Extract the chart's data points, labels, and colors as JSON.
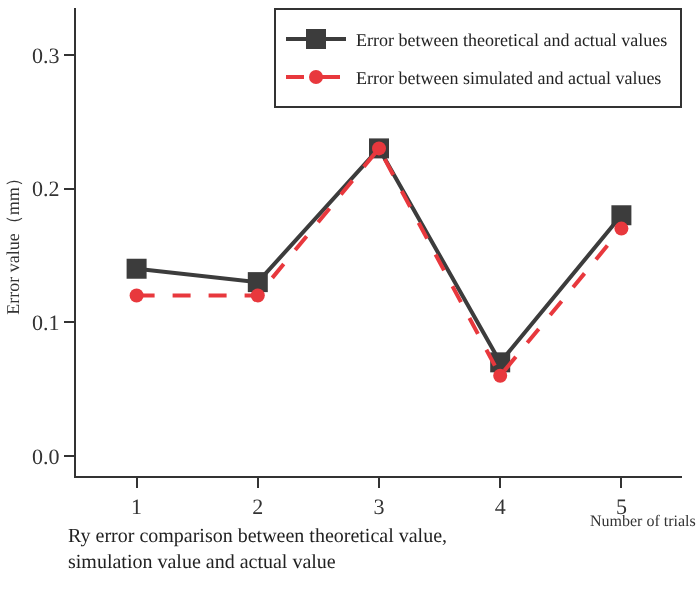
{
  "chart_data": {
    "type": "line",
    "xlabel": "Number of trials",
    "ylabel": "Error value（mm）",
    "annotations": [
      "Ry error comparison between theoretical value,\nsimulation value and actual value"
    ],
    "x": [
      1,
      2,
      3,
      4,
      5
    ],
    "series": [
      {
        "name": "Error between theoretical and actual values",
        "color": "#3c3c3c",
        "values": [
          0.14,
          0.13,
          0.23,
          0.07,
          0.18
        ],
        "marker": "square",
        "line_style": "solid"
      },
      {
        "name": "Error between simulated and actual values",
        "color": "#e8383d",
        "values": [
          0.12,
          0.12,
          0.23,
          0.06,
          0.17
        ],
        "marker": "circle",
        "line_style": "dashed"
      }
    ],
    "xlim": [
      0.5,
      5.5
    ],
    "xticks": [
      1,
      2,
      3,
      4,
      5
    ],
    "ylim": [
      -0.015,
      0.335
    ],
    "yticks": [
      {
        "value": 0,
        "label": "0.0"
      },
      {
        "value": 0.1,
        "label": "0.1"
      },
      {
        "value": 0.2,
        "label": "0.2"
      },
      {
        "value": 0.3,
        "label": "0.3"
      }
    ],
    "legend": "top right"
  }
}
